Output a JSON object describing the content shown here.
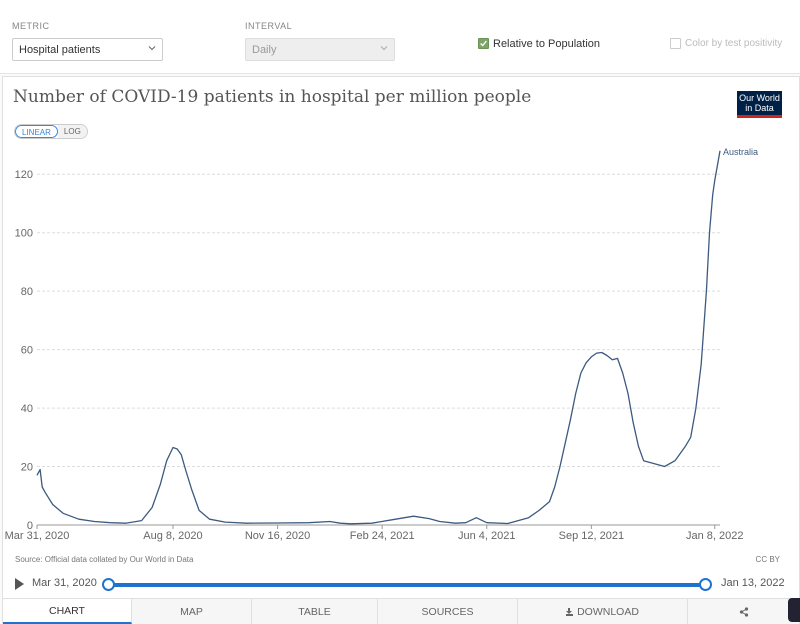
{
  "controls": {
    "metric_label": "METRIC",
    "metric_value": "Hospital patients",
    "interval_label": "INTERVAL",
    "interval_value": "Daily",
    "relative_label": "Relative to Population",
    "relative_checked": true,
    "color_label": "Color by test positivity",
    "color_checked": false
  },
  "header": {
    "title": "Number of COVID-19 patients in hospital per million people",
    "logo_line1": "Our World",
    "logo_line2": "in Data"
  },
  "scale": {
    "linear": "LINEAR",
    "log": "LOG",
    "active": "linear"
  },
  "footer": {
    "source": "Source: Official data collated by Our World in Data",
    "license": "CC BY"
  },
  "timeline": {
    "start": "Mar 31, 2020",
    "end": "Jan 13, 2022"
  },
  "tabs": [
    "CHART",
    "MAP",
    "TABLE",
    "SOURCES",
    "DOWNLOAD",
    "share"
  ],
  "colors": {
    "line": "#3d5a80",
    "accent": "#1e73d1",
    "grid": "#dddddd"
  },
  "chart_data": {
    "type": "line",
    "title": "Number of COVID-19 patients in hospital per million people",
    "ylim": [
      0,
      130
    ],
    "y_ticks": [
      0,
      20,
      40,
      60,
      80,
      100,
      120
    ],
    "x_tick_labels": [
      "Mar 31, 2020",
      "Aug 8, 2020",
      "Nov 16, 2020",
      "Feb 24, 2021",
      "Jun 4, 2021",
      "Sep 12, 2021",
      "Jan 8, 2022"
    ],
    "x_ticks_day": [
      0,
      130,
      230,
      330,
      430,
      530,
      648
    ],
    "x_domain_day": [
      0,
      653
    ],
    "grid": "horizontal",
    "series": [
      {
        "name": "Australia",
        "x_day": [
          0,
          3,
          5,
          8,
          15,
          25,
          40,
          55,
          70,
          85,
          100,
          110,
          118,
          124,
          128,
          130,
          134,
          138,
          142,
          148,
          155,
          165,
          180,
          200,
          230,
          260,
          280,
          290,
          300,
          320,
          340,
          360,
          375,
          385,
          400,
          410,
          420,
          430,
          450,
          470,
          480,
          490,
          495,
          500,
          505,
          510,
          515,
          520,
          525,
          530,
          535,
          540,
          545,
          550,
          555,
          560,
          565,
          570,
          575,
          580,
          590,
          600,
          610,
          620,
          625,
          630,
          635,
          640,
          643,
          646,
          648,
          650,
          653
        ],
        "values": [
          17,
          19,
          13,
          11,
          7,
          4,
          2,
          1.2,
          0.8,
          0.6,
          1.5,
          6,
          14,
          22,
          25,
          26.5,
          26,
          24,
          19,
          12,
          5,
          2,
          1,
          0.6,
          0.7,
          0.8,
          1.2,
          0.6,
          0.4,
          0.6,
          1.8,
          3,
          2.2,
          1.2,
          0.6,
          0.8,
          2.5,
          0.8,
          0.5,
          2.5,
          5,
          8,
          13,
          20,
          28,
          36,
          45,
          52,
          55.5,
          57.5,
          58.8,
          59,
          58,
          56.5,
          57,
          52,
          45,
          35,
          27,
          22,
          21,
          20,
          22,
          27,
          30,
          40,
          55,
          80,
          100,
          113,
          118,
          122,
          128
        ]
      }
    ]
  }
}
